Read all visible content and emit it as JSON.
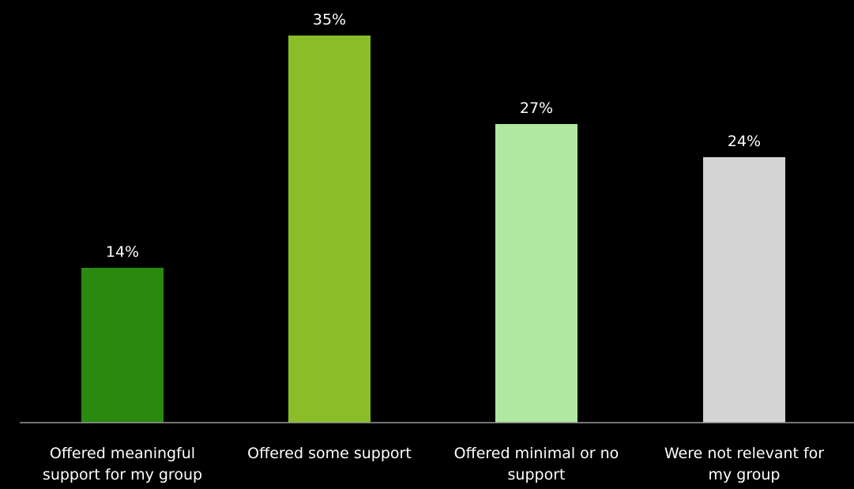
{
  "chart_data": {
    "type": "bar",
    "categories": [
      [
        "Offered meaningful",
        "support for my group"
      ],
      [
        "Offered some support"
      ],
      [
        "Offered minimal or no",
        "support"
      ],
      [
        "Were not relevant for",
        "my group"
      ]
    ],
    "values": [
      14,
      35,
      27,
      24
    ],
    "data_labels": [
      "14%",
      "35%",
      "27%",
      "24%"
    ],
    "colors": [
      "#2a8a10",
      "#8abe28",
      "#b0e8a0",
      "#d4d4d4"
    ],
    "ylim": [
      0,
      35
    ],
    "title": "",
    "xlabel": "",
    "ylabel": "",
    "grid": false,
    "legend": "none"
  }
}
